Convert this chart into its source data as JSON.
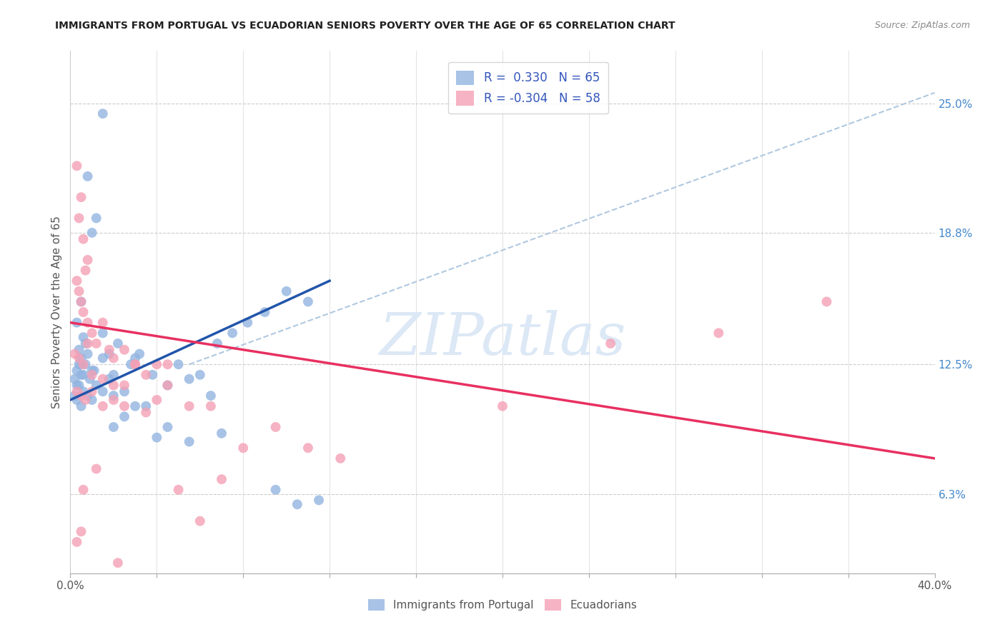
{
  "title": "IMMIGRANTS FROM PORTUGAL VS ECUADORIAN SENIORS POVERTY OVER THE AGE OF 65 CORRELATION CHART",
  "source": "Source: ZipAtlas.com",
  "ylabel": "Seniors Poverty Over the Age of 65",
  "ytick_values": [
    6.3,
    12.5,
    18.8,
    25.0
  ],
  "ytick_labels": [
    "6.3%",
    "12.5%",
    "18.8%",
    "25.0%"
  ],
  "xlim": [
    0.0,
    40.0
  ],
  "ylim": [
    2.5,
    27.5
  ],
  "blue_color": "#92b4e0",
  "pink_color": "#f4a0b5",
  "blue_trend_color": "#2255aa",
  "pink_trend_color": "#e83060",
  "dashed_line_color": "#b0c8e0",
  "watermark": "ZIPatlas",
  "legend_r_blue": "R =  0.330",
  "legend_n_blue": "N = 65",
  "legend_r_pink": "R = -0.304",
  "legend_n_pink": "N = 58",
  "legend_label_blue": "Immigrants from Portugal",
  "legend_label_pink": "Ecuadorians",
  "blue_points_x": [
    1.5,
    0.8,
    1.2,
    1.0,
    0.5,
    0.3,
    0.6,
    0.7,
    0.4,
    0.5,
    0.4,
    0.3,
    0.6,
    0.2,
    0.4,
    1.5,
    1.8,
    2.2,
    2.0,
    2.8,
    3.2,
    3.0,
    3.8,
    4.5,
    5.0,
    5.5,
    6.0,
    6.8,
    7.5,
    8.2,
    9.0,
    10.0,
    11.0,
    0.2,
    0.3,
    0.5,
    0.6,
    0.8,
    1.0,
    1.2,
    1.5,
    2.0,
    2.5,
    3.5,
    4.0,
    5.5,
    7.0,
    1.0,
    1.5,
    0.8,
    2.0,
    3.0,
    0.5,
    1.8,
    9.5,
    10.5,
    11.5,
    2.5,
    4.5,
    6.5,
    0.3,
    0.5,
    0.7,
    0.9,
    1.1
  ],
  "blue_points_y": [
    24.5,
    21.5,
    19.5,
    18.8,
    15.5,
    14.5,
    13.8,
    13.5,
    13.2,
    12.8,
    12.5,
    12.2,
    12.0,
    11.8,
    11.5,
    14.0,
    13.0,
    13.5,
    12.0,
    12.5,
    13.0,
    12.8,
    12.0,
    11.5,
    12.5,
    11.8,
    12.0,
    13.5,
    14.0,
    14.5,
    15.0,
    16.0,
    15.5,
    11.0,
    10.8,
    10.5,
    11.2,
    11.0,
    10.8,
    11.5,
    11.2,
    9.5,
    10.0,
    10.5,
    9.0,
    8.8,
    9.2,
    12.2,
    12.8,
    13.0,
    11.0,
    10.5,
    12.5,
    11.8,
    6.5,
    5.8,
    6.0,
    11.2,
    9.5,
    11.0,
    11.5,
    12.0,
    12.5,
    11.8,
    12.2
  ],
  "pink_points_x": [
    0.3,
    0.5,
    0.4,
    0.6,
    0.8,
    0.3,
    0.5,
    0.7,
    0.4,
    0.6,
    0.8,
    1.0,
    1.2,
    1.5,
    1.8,
    2.0,
    2.5,
    3.0,
    3.5,
    4.0,
    4.5,
    0.2,
    0.4,
    0.6,
    0.8,
    1.0,
    1.5,
    2.0,
    2.5,
    0.3,
    0.5,
    0.7,
    1.0,
    1.5,
    2.0,
    2.5,
    3.5,
    4.5,
    5.5,
    6.5,
    8.0,
    9.5,
    11.0,
    12.5,
    20.0,
    25.0,
    30.0,
    35.0,
    5.0,
    7.0,
    3.0,
    4.0,
    6.0,
    0.5,
    0.3,
    0.6,
    1.2,
    2.2
  ],
  "pink_points_y": [
    22.0,
    20.5,
    19.5,
    18.5,
    17.5,
    16.5,
    15.5,
    17.0,
    16.0,
    15.0,
    14.5,
    14.0,
    13.5,
    14.5,
    13.2,
    12.8,
    13.2,
    12.5,
    12.0,
    12.5,
    11.5,
    13.0,
    12.8,
    12.5,
    13.5,
    12.0,
    11.8,
    11.5,
    11.5,
    11.2,
    11.0,
    10.8,
    11.2,
    10.5,
    10.8,
    10.5,
    10.2,
    12.5,
    10.5,
    10.5,
    8.5,
    9.5,
    8.5,
    8.0,
    10.5,
    13.5,
    14.0,
    15.5,
    6.5,
    7.0,
    12.5,
    10.8,
    5.0,
    4.5,
    4.0,
    6.5,
    7.5,
    3.0
  ],
  "blue_line_x": [
    0.0,
    12.0
  ],
  "blue_line_y": [
    10.8,
    16.5
  ],
  "pink_line_x": [
    0.0,
    40.0
  ],
  "pink_line_y": [
    14.5,
    8.0
  ],
  "dashed_line_x": [
    5.5,
    40.0
  ],
  "dashed_line_y": [
    12.5,
    25.5
  ]
}
